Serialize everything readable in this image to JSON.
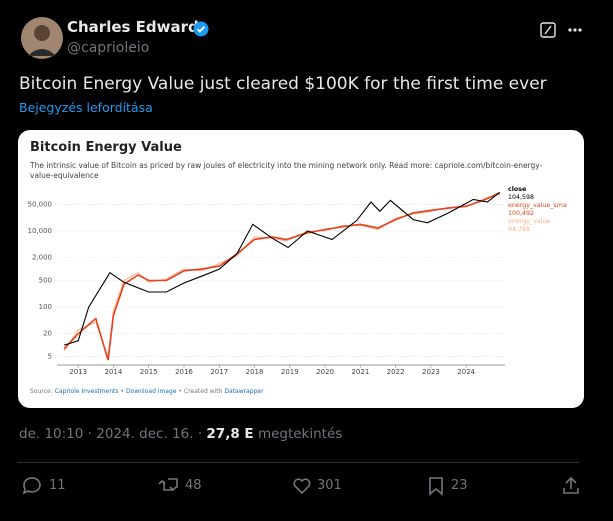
{
  "tweet": {
    "author": {
      "name": "Charles Edwards",
      "handle": "@caprioleio"
    },
    "text": "Bitcoin Energy Value just cleared $100K for the first time ever",
    "translate": "Bejegyzés lefordítása",
    "meta": {
      "time": "de. 10:10 · 2024. dec. 16. ·",
      "views": "27,8 E",
      "views_label": "megtekintés"
    },
    "actions": {
      "replies": "11",
      "reposts": "48",
      "likes": "301",
      "bookmarks": "23"
    }
  },
  "chart_data": {
    "type": "line",
    "title": "Bitcoin Energy Value",
    "subtitle": "The intrinsic value of Bitcoin as priced by raw joules of electricity into the mining network only. Read more: capriole.com/bitcoin-energy-value-equivalence",
    "source": [
      "Source:",
      "Capriole Investments",
      "•",
      "Download image",
      "•",
      "Created with",
      "Datawrapper"
    ],
    "yscale": "log",
    "grid": true,
    "xlim": [
      2012.4,
      2025.1
    ],
    "xticks": [
      2013,
      2014,
      2015,
      2016,
      2017,
      2018,
      2019,
      2020,
      2021,
      2022,
      2023,
      2024
    ],
    "ylim": [
      3,
      120000
    ],
    "yticks": [
      5,
      20,
      100,
      500,
      {
        "value": 2000,
        "label": "2,000"
      },
      {
        "value": 10000,
        "label": "10,000"
      },
      {
        "value": 50000,
        "label": "50,000"
      }
    ],
    "series": [
      {
        "name": "energy_value",
        "color": "#f6b08e",
        "x": [
          2012.6,
          2013.0,
          2013.5,
          2013.85,
          2014.0,
          2014.3,
          2014.7,
          2015.0,
          2015.5,
          2016.0,
          2016.5,
          2017.0,
          2017.5,
          2018.0,
          2018.5,
          2018.9,
          2019.5,
          2020.0,
          2020.5,
          2021.0,
          2021.5,
          2022.0,
          2022.5,
          2023.0,
          2023.5,
          2024.0,
          2024.5,
          2024.95
        ],
        "values": [
          7,
          25,
          40,
          5,
          80,
          500,
          800,
          450,
          550,
          1000,
          900,
          1400,
          2200,
          7000,
          6500,
          5500,
          10000,
          10000,
          14000,
          14000,
          11000,
          22000,
          28000,
          33000,
          42000,
          43000,
          70000,
          94788
        ],
        "value_labels": [
          null,
          null,
          null,
          null,
          null,
          null,
          null,
          null,
          null,
          null,
          null,
          null,
          null,
          null,
          null,
          null,
          null,
          null,
          null,
          null,
          null,
          null,
          null,
          null,
          null,
          null,
          null,
          "94,788"
        ]
      },
      {
        "name": "energy_value_sma",
        "color": "#e4421d",
        "x": [
          2012.6,
          2013.0,
          2013.5,
          2013.85,
          2014.0,
          2014.3,
          2014.7,
          2015.0,
          2015.5,
          2016.0,
          2016.5,
          2017.0,
          2017.5,
          2018.0,
          2018.5,
          2018.9,
          2019.5,
          2020.0,
          2020.5,
          2021.0,
          2021.5,
          2022.0,
          2022.5,
          2023.0,
          2023.5,
          2024.0,
          2024.5,
          2024.95
        ],
        "values": [
          8,
          20,
          50,
          4,
          60,
          400,
          700,
          500,
          500,
          900,
          1000,
          1200,
          2500,
          6000,
          7000,
          6000,
          9000,
          11000,
          13000,
          15000,
          12000,
          20000,
          30000,
          35000,
          40000,
          45000,
          65000,
          100492
        ],
        "value_labels": [
          null,
          null,
          null,
          null,
          null,
          null,
          null,
          null,
          null,
          null,
          null,
          null,
          null,
          null,
          null,
          null,
          null,
          null,
          null,
          null,
          null,
          null,
          null,
          null,
          null,
          null,
          null,
          "100,492"
        ]
      },
      {
        "name": "close",
        "color": "#000000",
        "x": [
          2012.6,
          2013.0,
          2013.3,
          2013.9,
          2014.3,
          2015.0,
          2015.5,
          2016.0,
          2016.5,
          2017.0,
          2017.5,
          2017.95,
          2018.5,
          2018.95,
          2019.5,
          2020.2,
          2020.9,
          2021.3,
          2021.55,
          2021.85,
          2022.5,
          2022.9,
          2023.5,
          2024.2,
          2024.6,
          2024.95
        ],
        "values": [
          10,
          13,
          100,
          800,
          450,
          250,
          250,
          430,
          650,
          1000,
          2500,
          15000,
          6500,
          3700,
          10000,
          6000,
          19000,
          58000,
          33000,
          64000,
          20000,
          16500,
          30000,
          68000,
          58000,
          104598
        ],
        "value_labels": [
          null,
          null,
          null,
          null,
          null,
          null,
          null,
          null,
          null,
          null,
          null,
          null,
          null,
          null,
          null,
          null,
          null,
          null,
          null,
          null,
          null,
          null,
          null,
          null,
          null,
          "104,598"
        ]
      }
    ]
  }
}
